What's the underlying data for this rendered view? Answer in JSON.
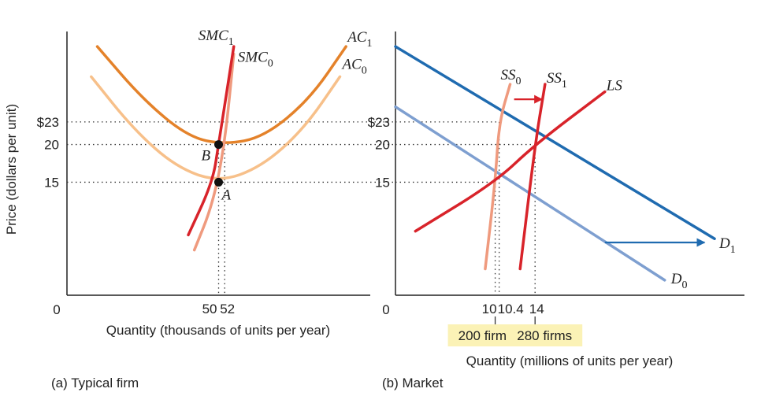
{
  "figure": {
    "ylabel": "Price (dollars per unit)"
  },
  "chart_data": [
    {
      "type": "line",
      "caption": "(a) Typical firm",
      "xlabel": "Quantity (thousands of units per year)",
      "ylabel": "Price (dollars per unit)",
      "origin_label": "0",
      "xlim": [
        0,
        100
      ],
      "ylim": [
        0,
        35
      ],
      "x_ticks": [
        {
          "value": 50,
          "label": "50"
        },
        {
          "value": 52,
          "label": "52"
        }
      ],
      "y_ticks": [
        {
          "value": 23,
          "label": "$23"
        },
        {
          "value": 20,
          "label": "20"
        },
        {
          "value": 15,
          "label": "15"
        }
      ],
      "colors": {
        "SMC1": "#d8232a",
        "SMC0": "#ef9a7e",
        "AC1": "#e4822a",
        "AC0": "#f7c08a",
        "point": "#111111"
      },
      "series": [
        {
          "name": "SMC",
          "sub": "1",
          "key": "SMC1",
          "points": [
            [
              40,
              8
            ],
            [
              48,
              15
            ],
            [
              50,
              20
            ],
            [
              55,
              33
            ]
          ]
        },
        {
          "name": "SMC",
          "sub": "0",
          "key": "SMC0",
          "points": [
            [
              42,
              6
            ],
            [
              48,
              12
            ],
            [
              52,
              20
            ],
            [
              55,
              32
            ]
          ]
        },
        {
          "name": "AC",
          "sub": "1",
          "key": "AC1",
          "points": [
            [
              10,
              33
            ],
            [
              25,
              26
            ],
            [
              40,
              21
            ],
            [
              52,
              20
            ],
            [
              65,
              21
            ],
            [
              80,
              26
            ],
            [
              92,
              33
            ]
          ]
        },
        {
          "name": "AC",
          "sub": "0",
          "key": "AC0",
          "points": [
            [
              8,
              29
            ],
            [
              22,
              22
            ],
            [
              36,
              17
            ],
            [
              50,
              15
            ],
            [
              64,
              17
            ],
            [
              78,
              22
            ],
            [
              90,
              29
            ]
          ]
        }
      ],
      "points": [
        {
          "label": "A",
          "x": 50,
          "y": 15
        },
        {
          "label": "B",
          "x": 50,
          "y": 20
        }
      ]
    },
    {
      "type": "line",
      "caption": "(b) Market",
      "xlabel": "Quantity (millions of units per year)",
      "origin_label": "0",
      "xlim": [
        0,
        35
      ],
      "ylim": [
        0,
        35
      ],
      "x_ticks": [
        {
          "value": 10,
          "label": "10"
        },
        {
          "value": 10.4,
          "label": "10.4"
        },
        {
          "value": 14,
          "label": "14"
        }
      ],
      "y_ticks": [
        {
          "value": 23,
          "label": "$23"
        },
        {
          "value": 20,
          "label": "20"
        },
        {
          "value": 15,
          "label": "15"
        }
      ],
      "colors": {
        "D1": "#1f6bb0",
        "D0": "#7e9fd0",
        "SS0": "#ef9a7e",
        "SS1": "#d8232a",
        "LS": "#d8232a",
        "shift_supply": "#d8232a",
        "shift_demand": "#1f6bb0",
        "box": "#fbf2b6"
      },
      "series": [
        {
          "name": "D",
          "sub": "1",
          "key": "D1",
          "points": [
            [
              0,
              33
            ],
            [
              32,
              7.5
            ]
          ]
        },
        {
          "name": "D",
          "sub": "0",
          "key": "D0",
          "points": [
            [
              0,
              25
            ],
            [
              27,
              2
            ]
          ]
        },
        {
          "name": "SS",
          "sub": "0",
          "key": "SS0",
          "points": [
            [
              9,
              3.5
            ],
            [
              10,
              15
            ],
            [
              10.4,
              23
            ],
            [
              11.5,
              28
            ]
          ]
        },
        {
          "name": "SS",
          "sub": "1",
          "key": "SS1",
          "points": [
            [
              12.5,
              3.5
            ],
            [
              14,
              20
            ],
            [
              15,
              28
            ]
          ]
        },
        {
          "name": "LS",
          "sub": "",
          "key": "LS",
          "points": [
            [
              2,
              8.5
            ],
            [
              10,
              15
            ],
            [
              14,
              20
            ],
            [
              21,
              27
            ]
          ]
        }
      ],
      "annotations": [
        {
          "text": "200 firms",
          "x": 10
        },
        {
          "text": "280 firms",
          "x": 14
        }
      ]
    }
  ]
}
